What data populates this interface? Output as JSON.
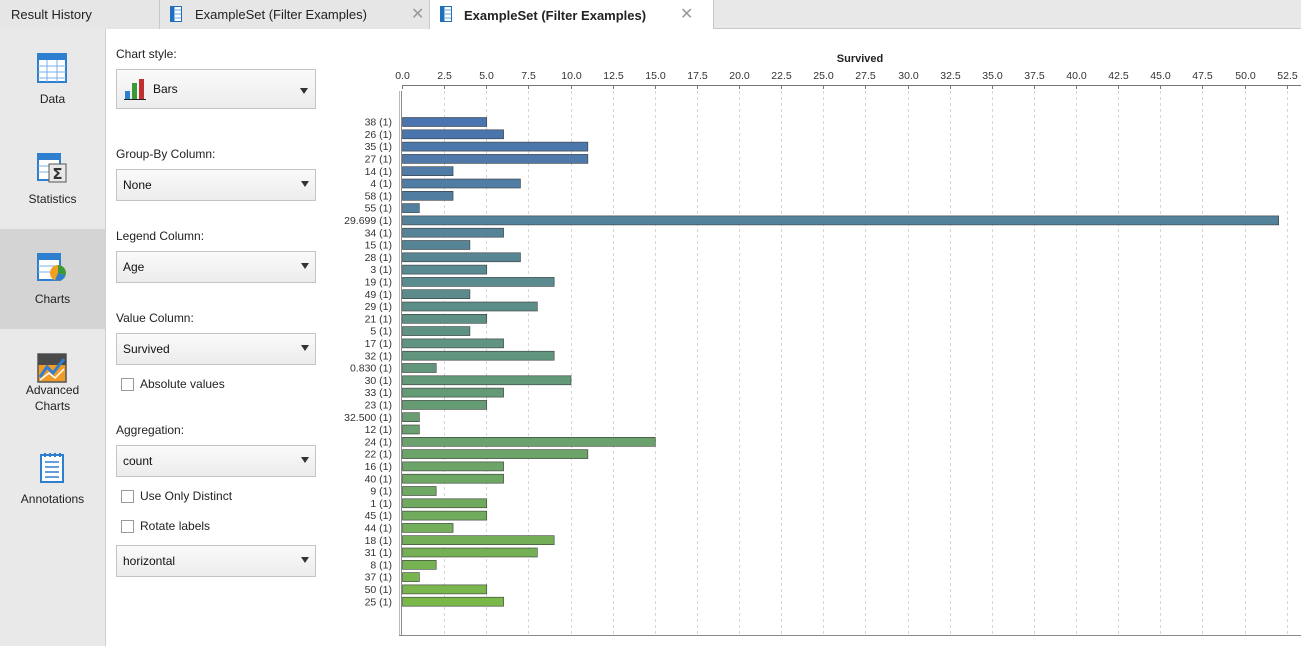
{
  "tabs": [
    {
      "label": "Result History",
      "closable": false,
      "active": false
    },
    {
      "label": "ExampleSet (Filter Examples)",
      "closable": true,
      "active": false
    },
    {
      "label": "ExampleSet (Filter Examples)",
      "closable": true,
      "active": true
    }
  ],
  "nav": {
    "data": "Data",
    "statistics": "Statistics",
    "charts": "Charts",
    "advanced_line1": "Advanced",
    "advanced_line2": "Charts",
    "annotations": "Annotations",
    "active": "Charts"
  },
  "config": {
    "chart_style_label": "Chart style:",
    "chart_style_value": "Bars",
    "group_by_label": "Group-By Column:",
    "group_by_value": "None",
    "legend_label": "Legend Column:",
    "legend_value": "Age",
    "value_label": "Value Column:",
    "value_value": "Survived",
    "absolute_values_label": "Absolute values",
    "absolute_values_checked": false,
    "aggregation_label": "Aggregation:",
    "aggregation_value": "count",
    "use_only_distinct_label": "Use Only Distinct",
    "use_only_distinct_checked": false,
    "rotate_labels_label": "Rotate labels",
    "rotate_labels_checked": false,
    "orientation_value": "horizontal"
  },
  "chart_data": {
    "type": "bar",
    "orientation": "horizontal",
    "title": "Survived",
    "axis_position": "top",
    "xlim": [
      0,
      53.5
    ],
    "ticks": [
      0.0,
      2.5,
      5.0,
      7.5,
      10.0,
      12.5,
      15.0,
      17.5,
      20.0,
      22.5,
      25.0,
      27.5,
      30.0,
      32.5,
      35.0,
      37.5,
      40.0,
      42.5,
      45.0,
      47.5,
      50.0,
      52.5
    ],
    "tick_labels": [
      "0.0",
      "2.5",
      "5.0",
      "7.5",
      "10.0",
      "12.5",
      "15.0",
      "17.5",
      "20.0",
      "22.5",
      "25.0",
      "27.5",
      "30.0",
      "32.5",
      "35.0",
      "37.5",
      "40.0",
      "42.5",
      "45.0",
      "47.5",
      "50.0",
      "52.5"
    ],
    "grid": true,
    "color_start": "#4a74b0",
    "color_end": "#7ab84a",
    "categories": [
      "38 (1)",
      "26 (1)",
      "35 (1)",
      "27 (1)",
      "14 (1)",
      "4 (1)",
      "58 (1)",
      "55 (1)",
      "29.699 (1)",
      "34 (1)",
      "15 (1)",
      "28 (1)",
      "3 (1)",
      "19 (1)",
      "49 (1)",
      "29 (1)",
      "21 (1)",
      "5 (1)",
      "17 (1)",
      "32 (1)",
      "0.830 (1)",
      "30 (1)",
      "33 (1)",
      "23 (1)",
      "32.500 (1)",
      "12 (1)",
      "24 (1)",
      "22 (1)",
      "16 (1)",
      "40 (1)",
      "9 (1)",
      "1 (1)",
      "45 (1)",
      "44 (1)",
      "18 (1)",
      "31 (1)",
      "8 (1)",
      "37 (1)",
      "50 (1)",
      "25 (1)"
    ],
    "values": [
      5,
      6,
      11,
      11,
      3,
      7,
      3,
      1,
      52,
      6,
      4,
      7,
      5,
      9,
      4,
      8,
      5,
      4,
      6,
      9,
      2,
      10,
      6,
      5,
      1,
      1,
      15,
      11,
      6,
      6,
      2,
      5,
      5,
      3,
      9,
      8,
      2,
      1,
      5,
      6
    ]
  }
}
